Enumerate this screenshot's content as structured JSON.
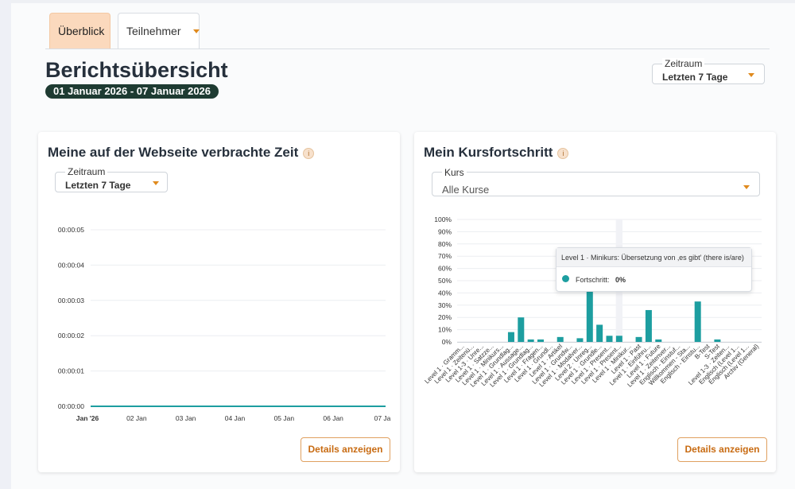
{
  "tabs": {
    "overview": "Überblick",
    "participants": "Teilnehmer"
  },
  "header": {
    "title": "Berichtsübersicht",
    "date_range": "01 Januar 2026 - 07 Januar 2026",
    "period_label": "Zeitraum",
    "period_value": "Letzten 7 Tage"
  },
  "time_card": {
    "title": "Meine auf der Webseite verbrachte Zeit",
    "info": "i",
    "period_label": "Zeitraum",
    "period_value": "Letzten 7 Tage",
    "details_button": "Details anzeigen"
  },
  "progress_card": {
    "title": "Mein Kursfortschritt",
    "info": "i",
    "course_label": "Kurs",
    "course_value": "Alle Kurse",
    "details_button": "Details anzeigen",
    "tooltip": {
      "title": "Level 1 · Minikurs: Übersetzung von ‚es gibt' (there is/are)",
      "label": "Fortschritt:",
      "value": "0%"
    }
  },
  "colors": {
    "accent": "#e08a1e",
    "tab_active_bg": "#fbd9bd",
    "date_pill_bg": "#1e3b32",
    "series": "#1d9ea0"
  },
  "chart_data": [
    {
      "type": "line",
      "title": "Meine auf der Webseite verbrachte Zeit",
      "x": [
        "Jan '26",
        "02 Jan",
        "03 Jan",
        "04 Jan",
        "05 Jan",
        "06 Jan",
        "07 Ja"
      ],
      "y_ticks": [
        "00:00:00",
        "00:00:01",
        "00:00:02",
        "00:00:03",
        "00:00:04",
        "00:00:05"
      ],
      "ylim": [
        0,
        5
      ],
      "series": [
        {
          "values": [
            0,
            0,
            0,
            0,
            0,
            0,
            0
          ]
        }
      ],
      "grid": true
    },
    {
      "type": "bar",
      "title": "Mein Kursfortschritt",
      "y_ticks": [
        "0%",
        "10%",
        "20%",
        "30%",
        "40%",
        "50%",
        "60%",
        "70%",
        "80%",
        "90%",
        "100%"
      ],
      "ylim": [
        0,
        100
      ],
      "categories": [
        "Level 1 · Gramm...",
        "Level 1 · Zeitenü...",
        "Level 1-3 · Unre...",
        "Level 1 · Satzze...",
        "Level 1 · Minikurs...",
        "Level 1 · Grundlag...",
        "Level 1 · Aussage...",
        "Level 1 · Grundlag...",
        "Level 1 · Fragen...",
        "Level 1 · Grundl...",
        "Level 1 · Artikel",
        "Level 1 · Grundw...",
        "Level 1 · Modalver...",
        "Level 2 · Unreg...",
        "Level 1 · Grundle...",
        "Level 1 · Present...",
        "Level 1 · Present...",
        "Level 1 · Minikur...",
        "Level 1 · Past",
        "Level 1 · Einführu...",
        "Level 1 · Future",
        "Level 1 · Zeitenver...",
        "Englisch - Einstuf...",
        "Willkommen - Sta...",
        "Englisch - Einstu...",
        "B-Test",
        "S-Test",
        "Level 1-3 · Zeiten...",
        "Englisch (Level 1...",
        "Englisch (Level 1...",
        "Archiv (General)"
      ],
      "values": [
        0,
        0,
        0,
        0,
        0,
        8,
        20,
        2,
        2,
        0,
        4,
        0,
        3,
        42,
        14,
        5,
        5,
        0,
        4,
        26,
        2,
        0,
        0,
        0,
        33,
        0,
        2,
        0,
        0,
        0,
        0
      ],
      "grid": true
    }
  ]
}
